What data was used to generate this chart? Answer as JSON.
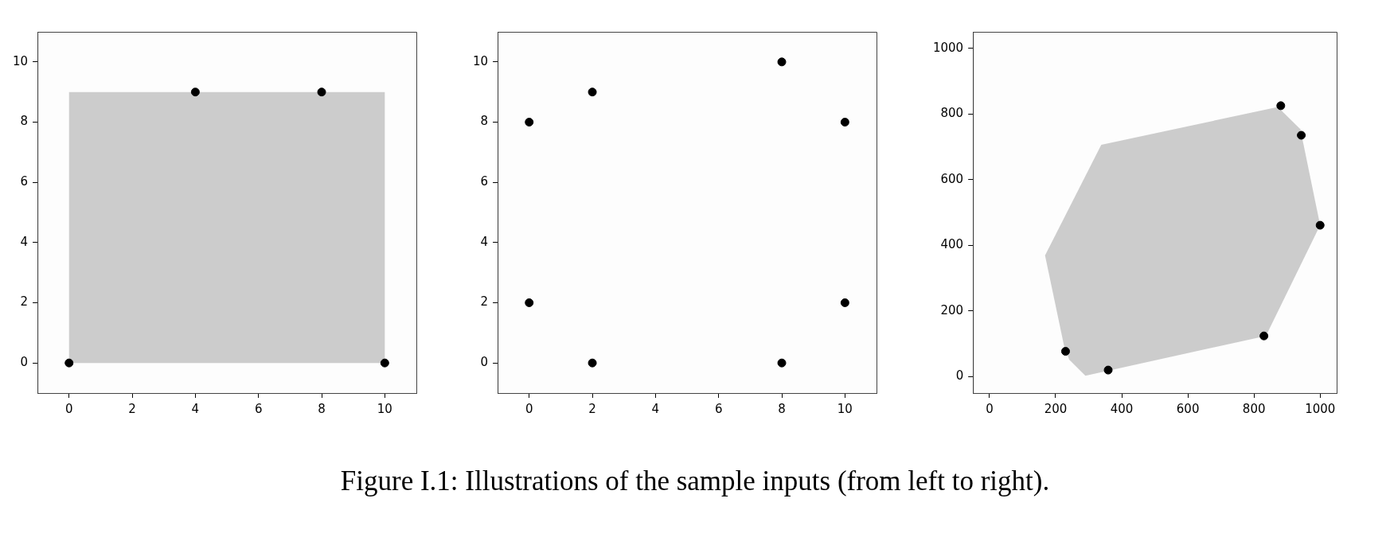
{
  "chart_data": [
    {
      "type": "scatter",
      "xlim": [
        -1,
        11
      ],
      "ylim": [
        -1,
        11
      ],
      "xticks": [
        0,
        2,
        4,
        6,
        8,
        10
      ],
      "yticks": [
        0,
        2,
        4,
        6,
        8,
        10
      ],
      "grid": false,
      "legend": false,
      "marker": "circle",
      "series": [
        {
          "type": "area",
          "marker": "none",
          "color": "#cccccc",
          "x": [
            0,
            10,
            10,
            0
          ],
          "values": [
            0,
            0,
            9,
            9
          ]
        },
        {
          "color": "#000000",
          "x": [
            0,
            4,
            8,
            10
          ],
          "values": [
            0,
            9,
            9,
            0
          ]
        }
      ],
      "annotations": [
        "Figure I.1: Illustrations of the sample inputs (from left to right)."
      ]
    },
    {
      "type": "scatter",
      "xlim": [
        -1,
        11
      ],
      "ylim": [
        -1,
        11
      ],
      "xticks": [
        0,
        2,
        4,
        6,
        8,
        10
      ],
      "yticks": [
        0,
        2,
        4,
        6,
        8,
        10
      ],
      "grid": false,
      "legend": false,
      "marker": "circle",
      "series": [
        {
          "color": "#000000",
          "x": [
            0,
            2,
            8,
            10,
            0,
            2,
            8,
            10
          ],
          "values": [
            8,
            9,
            10,
            8,
            2,
            0,
            0,
            2
          ]
        }
      ]
    },
    {
      "type": "scatter",
      "xlim": [
        -50,
        1050
      ],
      "ylim": [
        -50,
        1050
      ],
      "xticks": [
        0,
        200,
        400,
        600,
        800,
        1000
      ],
      "yticks": [
        0,
        200,
        400,
        600,
        800,
        1000
      ],
      "grid": false,
      "legend": false,
      "marker": "circle",
      "series": [
        {
          "type": "area",
          "marker": "none",
          "color": "#cccccc",
          "x": [
            338,
            872,
            940,
            950,
            1000,
            836,
            290,
            241,
            225,
            168
          ],
          "values": [
            706,
            821,
            754,
            706,
            461,
            124,
            3,
            52,
            96,
            369
          ]
        },
        {
          "color": "#000000",
          "x": [
            230,
            359,
            830,
            1000,
            943,
            881
          ],
          "values": [
            77,
            20,
            124,
            461,
            735,
            825
          ]
        }
      ]
    }
  ]
}
